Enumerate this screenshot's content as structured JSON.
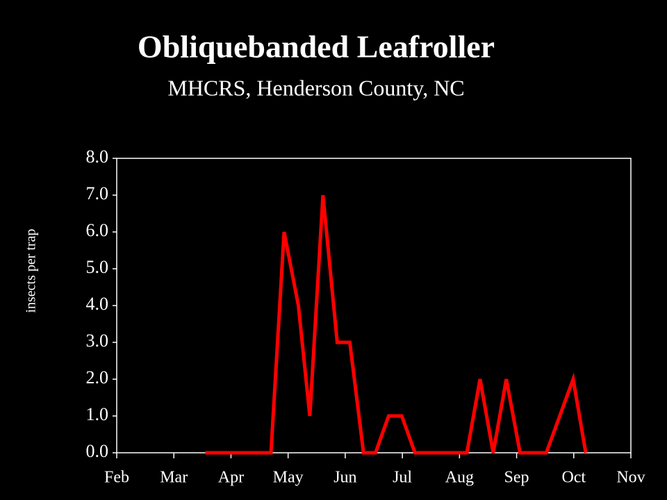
{
  "chart_data": {
    "type": "line",
    "title": "Obliquebanded Leafroller",
    "subtitle": "MHCRS, Henderson County, NC",
    "y_label": "insects per trap",
    "x": [
      1.55,
      2.7,
      2.93,
      3.18,
      3.38,
      3.61,
      3.86,
      4.08,
      4.32,
      4.53,
      4.76,
      4.99,
      5.22,
      6.13,
      6.36,
      6.59,
      6.82,
      7.06,
      7.52,
      7.99,
      8.21
    ],
    "series": [
      {
        "name": "Obliquebanded Leafroller",
        "color": "#ff0000",
        "values": [
          0,
          0,
          6,
          4,
          1,
          7,
          3,
          3,
          0,
          0,
          1,
          1,
          0,
          0,
          2,
          0,
          2,
          0,
          0,
          2,
          0
        ]
      }
    ],
    "xlim": [
      0,
      9
    ],
    "xticks": [
      {
        "value": 0,
        "label": "Feb"
      },
      {
        "value": 1,
        "label": "Mar"
      },
      {
        "value": 2,
        "label": "Apr"
      },
      {
        "value": 3,
        "label": "May"
      },
      {
        "value": 4,
        "label": "Jun"
      },
      {
        "value": 5,
        "label": "Jul"
      },
      {
        "value": 6,
        "label": "Aug"
      },
      {
        "value": 7,
        "label": "Sep"
      },
      {
        "value": 8,
        "label": "Oct"
      },
      {
        "value": 9,
        "label": "Nov"
      }
    ],
    "ylim": [
      0,
      8
    ],
    "yticks": [
      {
        "value": 0,
        "label": "0.0"
      },
      {
        "value": 1,
        "label": "1.0"
      },
      {
        "value": 2,
        "label": "2.0"
      },
      {
        "value": 3,
        "label": "3.0"
      },
      {
        "value": 4,
        "label": "4.0"
      },
      {
        "value": 5,
        "label": "5.0"
      },
      {
        "value": 6,
        "label": "6.0"
      },
      {
        "value": 7,
        "label": "7.0"
      },
      {
        "value": 8,
        "label": "8.0"
      }
    ]
  }
}
